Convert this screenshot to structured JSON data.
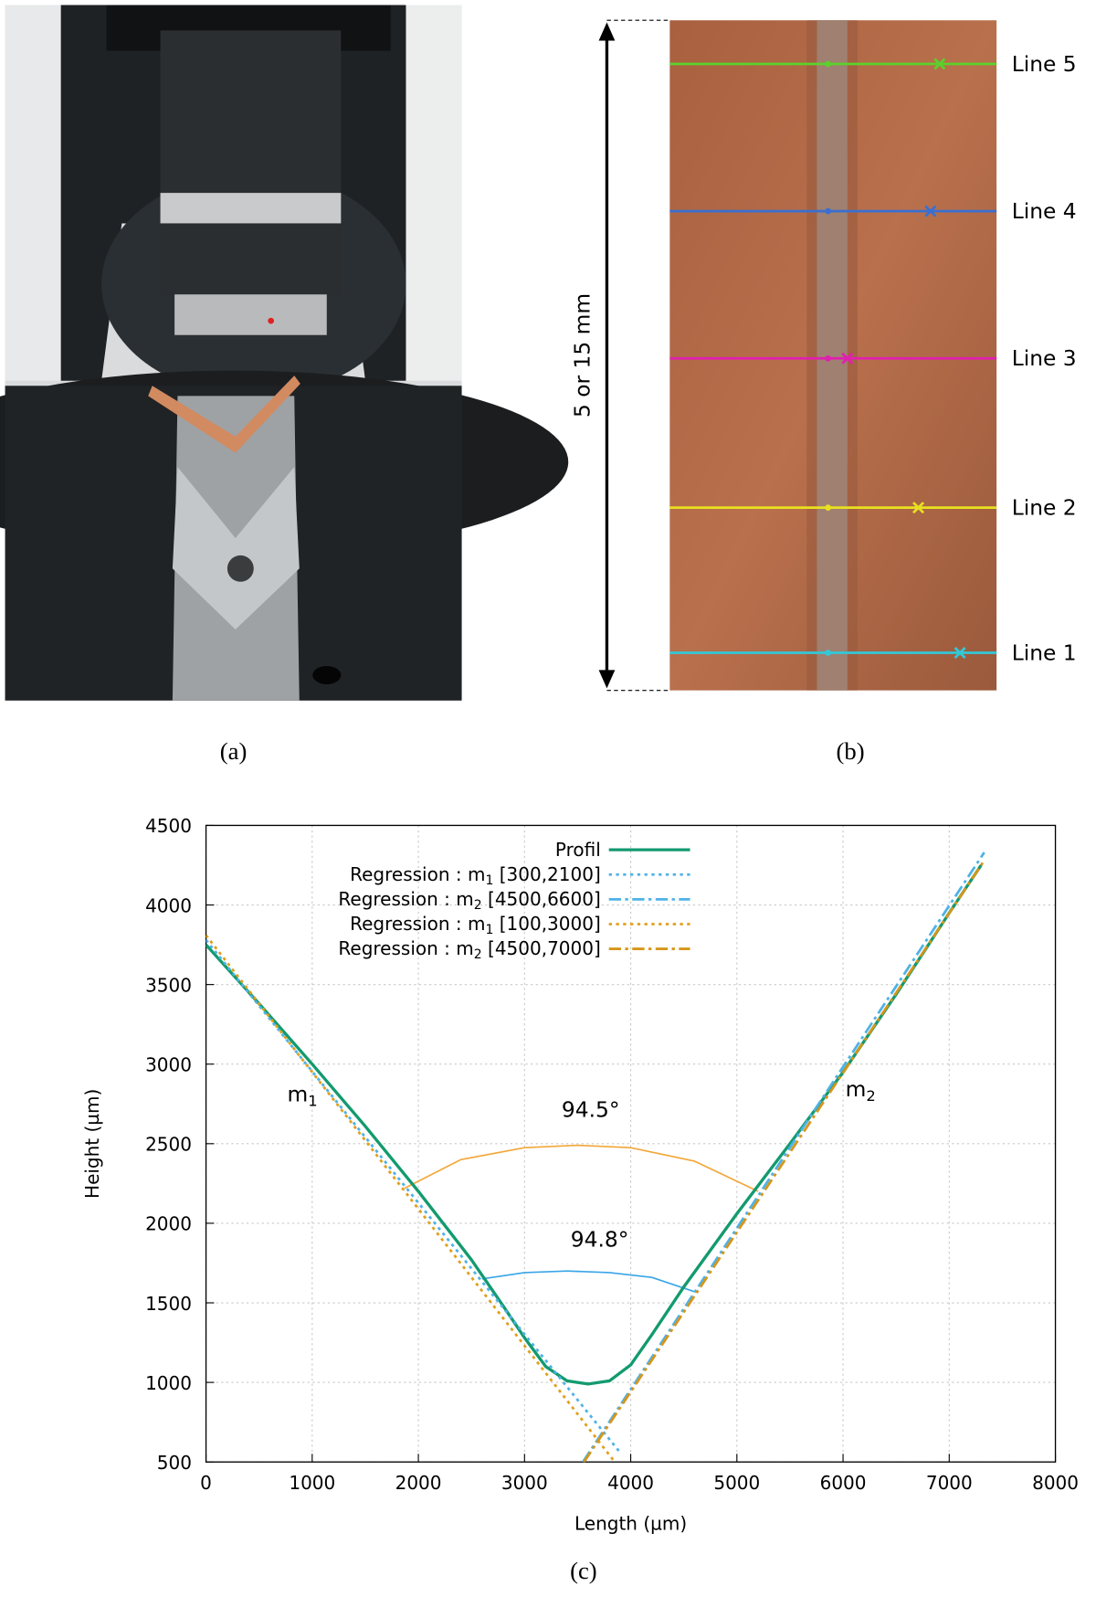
{
  "panel_a": {
    "caption": "(a)"
  },
  "panel_b": {
    "caption": "(b)",
    "dimension_label": "5 or 15 mm",
    "lines": [
      "Line 1",
      "Line 2",
      "Line 3",
      "Line 4",
      "Line 5"
    ]
  },
  "chart_data": {
    "type": "line",
    "caption": "(c)",
    "xlabel": "Length (µm)",
    "ylabel": "Height (µm)",
    "xlim": [
      0,
      8000
    ],
    "ylim": [
      500,
      4500
    ],
    "xticks": [
      0,
      1000,
      2000,
      3000,
      4000,
      5000,
      6000,
      7000,
      8000
    ],
    "yticks": [
      500,
      1000,
      1500,
      2000,
      2500,
      3000,
      3500,
      4000,
      4500
    ],
    "grid": true,
    "legend": "top-right",
    "series": [
      {
        "name": [
          "Profil"
        ],
        "color": "#139a6f",
        "style": "solid",
        "x": [
          0,
          500,
          1000,
          1500,
          2000,
          2500,
          2800,
          3000,
          3200,
          3400,
          3600,
          3800,
          4000,
          4200,
          4500,
          5000,
          5500,
          6000,
          6500,
          7000,
          7300
        ],
        "values": [
          3750,
          3380,
          3000,
          2610,
          2200,
          1770,
          1480,
          1280,
          1100,
          1010,
          990,
          1010,
          1110,
          1300,
          1600,
          2060,
          2500,
          2950,
          3440,
          3950,
          4250
        ]
      },
      {
        "name": [
          "Regression : m",
          "1",
          " [300,2100]"
        ],
        "color": "#4fb2e6",
        "style": "dotted",
        "x": [
          0,
          3900
        ],
        "values": [
          3780,
          560
        ]
      },
      {
        "name": [
          "Regression : m",
          "2",
          " [4500,6600]"
        ],
        "color": "#4fb2e6",
        "style": "dashdot",
        "x": [
          3550,
          7330
        ],
        "values": [
          500,
          4330
        ]
      },
      {
        "name": [
          "Regression : m",
          "1",
          " [100,3000]"
        ],
        "color": "#e0a01e",
        "style": "dotted",
        "x": [
          0,
          3850
        ],
        "values": [
          3810,
          500
        ]
      },
      {
        "name": [
          "Regression : m",
          "2",
          " [4500,7000]"
        ],
        "color": "#d6961a",
        "style": "dashdot",
        "x": [
          3560,
          7330
        ],
        "values": [
          500,
          4280
        ]
      }
    ],
    "arcs": [
      {
        "color": "#f2a73a",
        "x": [
          1870,
          2400,
          3000,
          3500,
          4000,
          4600,
          5200
        ],
        "y": [
          2220,
          2400,
          2475,
          2490,
          2475,
          2390,
          2200
        ]
      },
      {
        "color": "#3aa6e8",
        "x": [
          2600,
          3000,
          3400,
          3800,
          4200,
          4600
        ],
        "y": [
          1650,
          1690,
          1700,
          1690,
          1660,
          1570
        ]
      }
    ],
    "annotations": [
      {
        "text": [
          "94.5°"
        ],
        "x": 3623,
        "y": 2669
      },
      {
        "text": [
          "94.8°"
        ],
        "x": 3708,
        "y": 1852
      },
      {
        "text": [
          "m",
          "1"
        ],
        "x": 908,
        "y": 2765
      },
      {
        "text": [
          "m",
          "2"
        ],
        "x": 6165,
        "y": 2797
      }
    ]
  }
}
